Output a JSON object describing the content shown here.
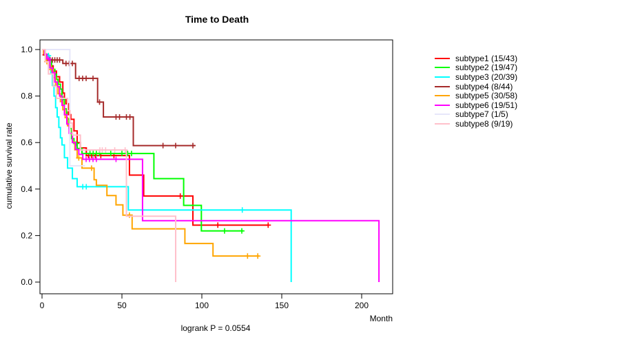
{
  "title": "Time to Death",
  "annotation": "logrank P = 0.0554",
  "axes": {
    "x": {
      "label": "Month",
      "ticks": [
        0,
        50,
        100,
        150,
        200
      ]
    },
    "y": {
      "label": "cumulative survival rate",
      "ticks": [
        "0.0",
        "0.2",
        "0.4",
        "0.6",
        "0.8",
        "1.0"
      ]
    }
  },
  "chart_data": {
    "type": "line",
    "variant": "kaplan-meier-step",
    "title": "Time to Death",
    "xlabel": "Month",
    "ylabel": "cumulative survival rate",
    "xlim": [
      0,
      220
    ],
    "ylim": [
      0.0,
      1.0
    ],
    "grid": false,
    "legend_position": "right-outside",
    "annotation": "logrank P = 0.0554",
    "series": [
      {
        "name": "subtype1",
        "label": "subtype1 (15/43)",
        "color": "#FF0000",
        "points": [
          [
            0,
            1
          ],
          [
            1,
            0.977
          ],
          [
            3,
            0.953
          ],
          [
            5,
            0.93
          ],
          [
            7,
            0.907
          ],
          [
            9,
            0.883
          ],
          [
            11,
            0.86
          ],
          [
            13,
            0.813
          ],
          [
            14,
            0.79
          ],
          [
            15,
            0.767
          ],
          [
            16.5,
            0.72
          ],
          [
            18,
            0.7
          ],
          [
            20,
            0.65
          ],
          [
            22,
            0.6
          ],
          [
            24,
            0.577
          ],
          [
            27.7,
            0.544
          ],
          [
            54.7,
            0.46
          ],
          [
            63.6,
            0.37
          ],
          [
            94.4,
            0.245
          ],
          [
            142,
            0.245
          ]
        ],
        "censors": [
          2,
          29,
          31,
          33.3,
          36.8,
          45,
          86.5,
          110,
          141.5
        ]
      },
      {
        "name": "subtype2",
        "label": "subtype2 (19/47)",
        "color": "#00FF00",
        "points": [
          [
            0,
            1
          ],
          [
            2,
            0.979
          ],
          [
            4,
            0.957
          ],
          [
            6,
            0.915
          ],
          [
            8,
            0.894
          ],
          [
            9,
            0.872
          ],
          [
            10,
            0.851
          ],
          [
            11.5,
            0.83
          ],
          [
            12.5,
            0.787
          ],
          [
            14,
            0.745
          ],
          [
            15.5,
            0.702
          ],
          [
            17,
            0.66
          ],
          [
            18.5,
            0.617
          ],
          [
            20,
            0.596
          ],
          [
            22,
            0.575
          ],
          [
            25,
            0.553
          ],
          [
            70,
            0.445
          ],
          [
            88.6,
            0.33
          ],
          [
            99.7,
            0.22
          ],
          [
            126,
            0.22
          ]
        ],
        "censors": [
          5,
          13,
          21.6,
          30,
          32,
          34,
          36,
          43,
          50,
          53.6,
          56,
          114.2,
          125
        ]
      },
      {
        "name": "subtype3",
        "label": "subtype3 (20/39)",
        "color": "#00FFFF",
        "points": [
          [
            0,
            1
          ],
          [
            2,
            0.974
          ],
          [
            4.5,
            0.923
          ],
          [
            5.5,
            0.897
          ],
          [
            6.5,
            0.846
          ],
          [
            7.5,
            0.8
          ],
          [
            8.5,
            0.75
          ],
          [
            9.5,
            0.71
          ],
          [
            10.5,
            0.665
          ],
          [
            11.5,
            0.62
          ],
          [
            12.5,
            0.59
          ],
          [
            14,
            0.535
          ],
          [
            16,
            0.49
          ],
          [
            19,
            0.445
          ],
          [
            22,
            0.41
          ],
          [
            54,
            0.31
          ],
          [
            155.9,
            0
          ]
        ],
        "censors": [
          4,
          25.5,
          27.7,
          125.3
        ]
      },
      {
        "name": "subtype4",
        "label": "subtype4 (8/44)",
        "color": "#A52A2A",
        "points": [
          [
            0,
            1
          ],
          [
            1.5,
            0.977
          ],
          [
            3,
            0.955
          ],
          [
            13,
            0.94
          ],
          [
            21,
            0.876
          ],
          [
            34.8,
            0.774
          ],
          [
            38.4,
            0.71
          ],
          [
            57.1,
            0.587
          ],
          [
            95.8,
            0.587
          ]
        ],
        "censors": [
          5,
          6.5,
          8,
          9.5,
          11,
          15,
          17,
          19,
          23.2,
          25.4,
          27.6,
          31.9,
          36,
          46.3,
          48.5,
          52.8,
          55,
          75.7,
          83.6,
          94.4
        ]
      },
      {
        "name": "subtype5",
        "label": "subtype5 (30/58)",
        "color": "#FFA500",
        "points": [
          [
            0,
            1
          ],
          [
            1,
            0.983
          ],
          [
            2.3,
            0.948
          ],
          [
            4,
            0.931
          ],
          [
            5.5,
            0.914
          ],
          [
            7,
            0.879
          ],
          [
            8.5,
            0.845
          ],
          [
            10,
            0.81
          ],
          [
            11.5,
            0.776
          ],
          [
            13,
            0.741
          ],
          [
            14.5,
            0.707
          ],
          [
            16,
            0.672
          ],
          [
            17.5,
            0.638
          ],
          [
            19,
            0.603
          ],
          [
            20.5,
            0.569
          ],
          [
            22,
            0.534
          ],
          [
            25,
            0.49
          ],
          [
            32.6,
            0.44
          ],
          [
            34,
            0.416
          ],
          [
            40.6,
            0.372
          ],
          [
            46.3,
            0.332
          ],
          [
            50.6,
            0.288
          ],
          [
            56.4,
            0.229
          ],
          [
            89.4,
            0.166
          ],
          [
            107,
            0.112
          ],
          [
            135.8,
            0.112
          ]
        ],
        "censors": [
          3,
          6,
          23,
          31,
          54.7,
          128.6,
          135
        ]
      },
      {
        "name": "subtype6",
        "label": "subtype6 (19/51)",
        "color": "#FF00FF",
        "points": [
          [
            0,
            1
          ],
          [
            1.6,
            0.98
          ],
          [
            3,
            0.96
          ],
          [
            5,
            0.921
          ],
          [
            6.5,
            0.901
          ],
          [
            8,
            0.86
          ],
          [
            9.5,
            0.84
          ],
          [
            11,
            0.8
          ],
          [
            12.5,
            0.76
          ],
          [
            14,
            0.72
          ],
          [
            15.5,
            0.68
          ],
          [
            17,
            0.64
          ],
          [
            19,
            0.6
          ],
          [
            21,
            0.57
          ],
          [
            23,
            0.549
          ],
          [
            25.5,
            0.528
          ],
          [
            62.9,
            0.264
          ],
          [
            210.8,
            0
          ]
        ],
        "censors": [
          4,
          27.6,
          29.7,
          31.9,
          34,
          46.3
        ]
      },
      {
        "name": "subtype7",
        "label": "subtype7 (1/5)",
        "color": "#E6E6FA",
        "points": [
          [
            0,
            1
          ],
          [
            17.4,
            0.5
          ],
          [
            26.8,
            0.5
          ]
        ],
        "censors": []
      },
      {
        "name": "subtype8",
        "label": "subtype8 (9/19)",
        "color": "#FFC0CB",
        "points": [
          [
            0,
            1
          ],
          [
            2,
            0.947
          ],
          [
            4,
            0.895
          ],
          [
            7,
            0.842
          ],
          [
            9,
            0.79
          ],
          [
            16,
            0.737
          ],
          [
            17.5,
            0.684
          ],
          [
            19,
            0.632
          ],
          [
            24,
            0.568
          ],
          [
            52.8,
            0.283
          ],
          [
            83.6,
            0
          ]
        ],
        "censors": [
          36.2,
          37.7,
          39.8,
          45.5,
          52
        ]
      }
    ]
  }
}
